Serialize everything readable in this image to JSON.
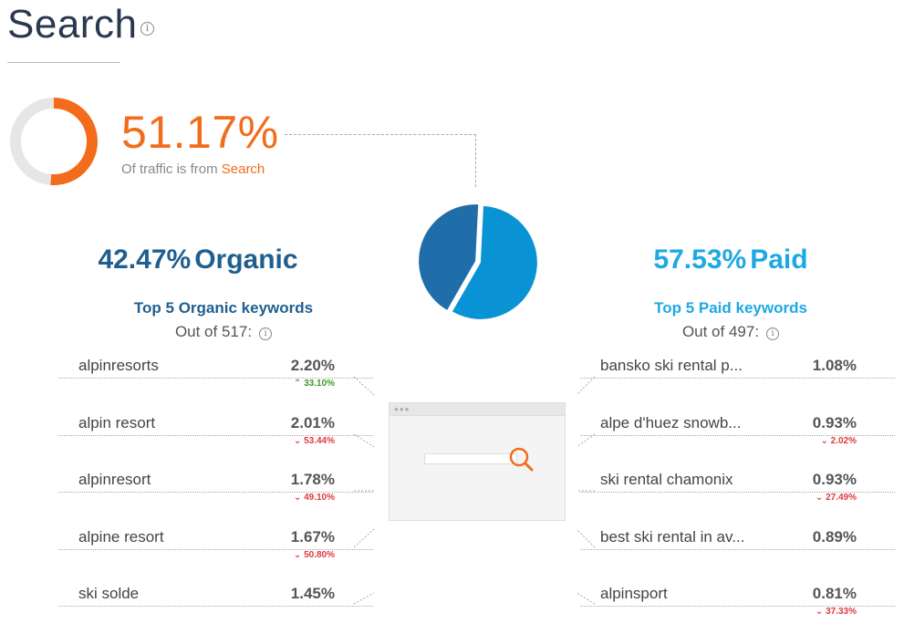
{
  "header": {
    "title": "Search",
    "info_icon": "info-icon"
  },
  "summary": {
    "search_share": "51.17%",
    "search_share_value": 51.17,
    "note_prefix": "Of traffic is from",
    "note_highlight": "Search",
    "accent_color": "#f26c1c",
    "track_color": "#e6e6e6"
  },
  "split": {
    "organic_pct": "42.47%",
    "organic_label": "Organic",
    "organic_value": 42.47,
    "organic_color": "#1f6ea9",
    "paid_pct": "57.53%",
    "paid_label": "Paid",
    "paid_value": 57.53,
    "paid_color": "#0a93d4"
  },
  "organic": {
    "heading": "Top 5 Organic keywords",
    "out_of": "Out of 517:",
    "keywords": [
      {
        "name": "alpinresorts",
        "share": "2.20%",
        "change": "33.10%",
        "direction": "up"
      },
      {
        "name": "alpin resort",
        "share": "2.01%",
        "change": "53.44%",
        "direction": "down"
      },
      {
        "name": "alpinresort",
        "share": "1.78%",
        "change": "49.10%",
        "direction": "down"
      },
      {
        "name": "alpine resort",
        "share": "1.67%",
        "change": "50.80%",
        "direction": "down"
      },
      {
        "name": "ski solde",
        "share": "1.45%",
        "change": "",
        "direction": ""
      }
    ]
  },
  "paid": {
    "heading": "Top 5 Paid keywords",
    "out_of": "Out of 497:",
    "keywords": [
      {
        "name": "bansko ski rental p...",
        "share": "1.08%",
        "change": "",
        "direction": ""
      },
      {
        "name": "alpe d'huez snowb...",
        "share": "0.93%",
        "change": "2.02%",
        "direction": "down"
      },
      {
        "name": "ski rental chamonix",
        "share": "0.93%",
        "change": "27.49%",
        "direction": "down"
      },
      {
        "name": "best ski rental in av...",
        "share": "0.89%",
        "change": "",
        "direction": ""
      },
      {
        "name": "alpinsport",
        "share": "0.81%",
        "change": "37.33%",
        "direction": "down"
      }
    ]
  }
}
